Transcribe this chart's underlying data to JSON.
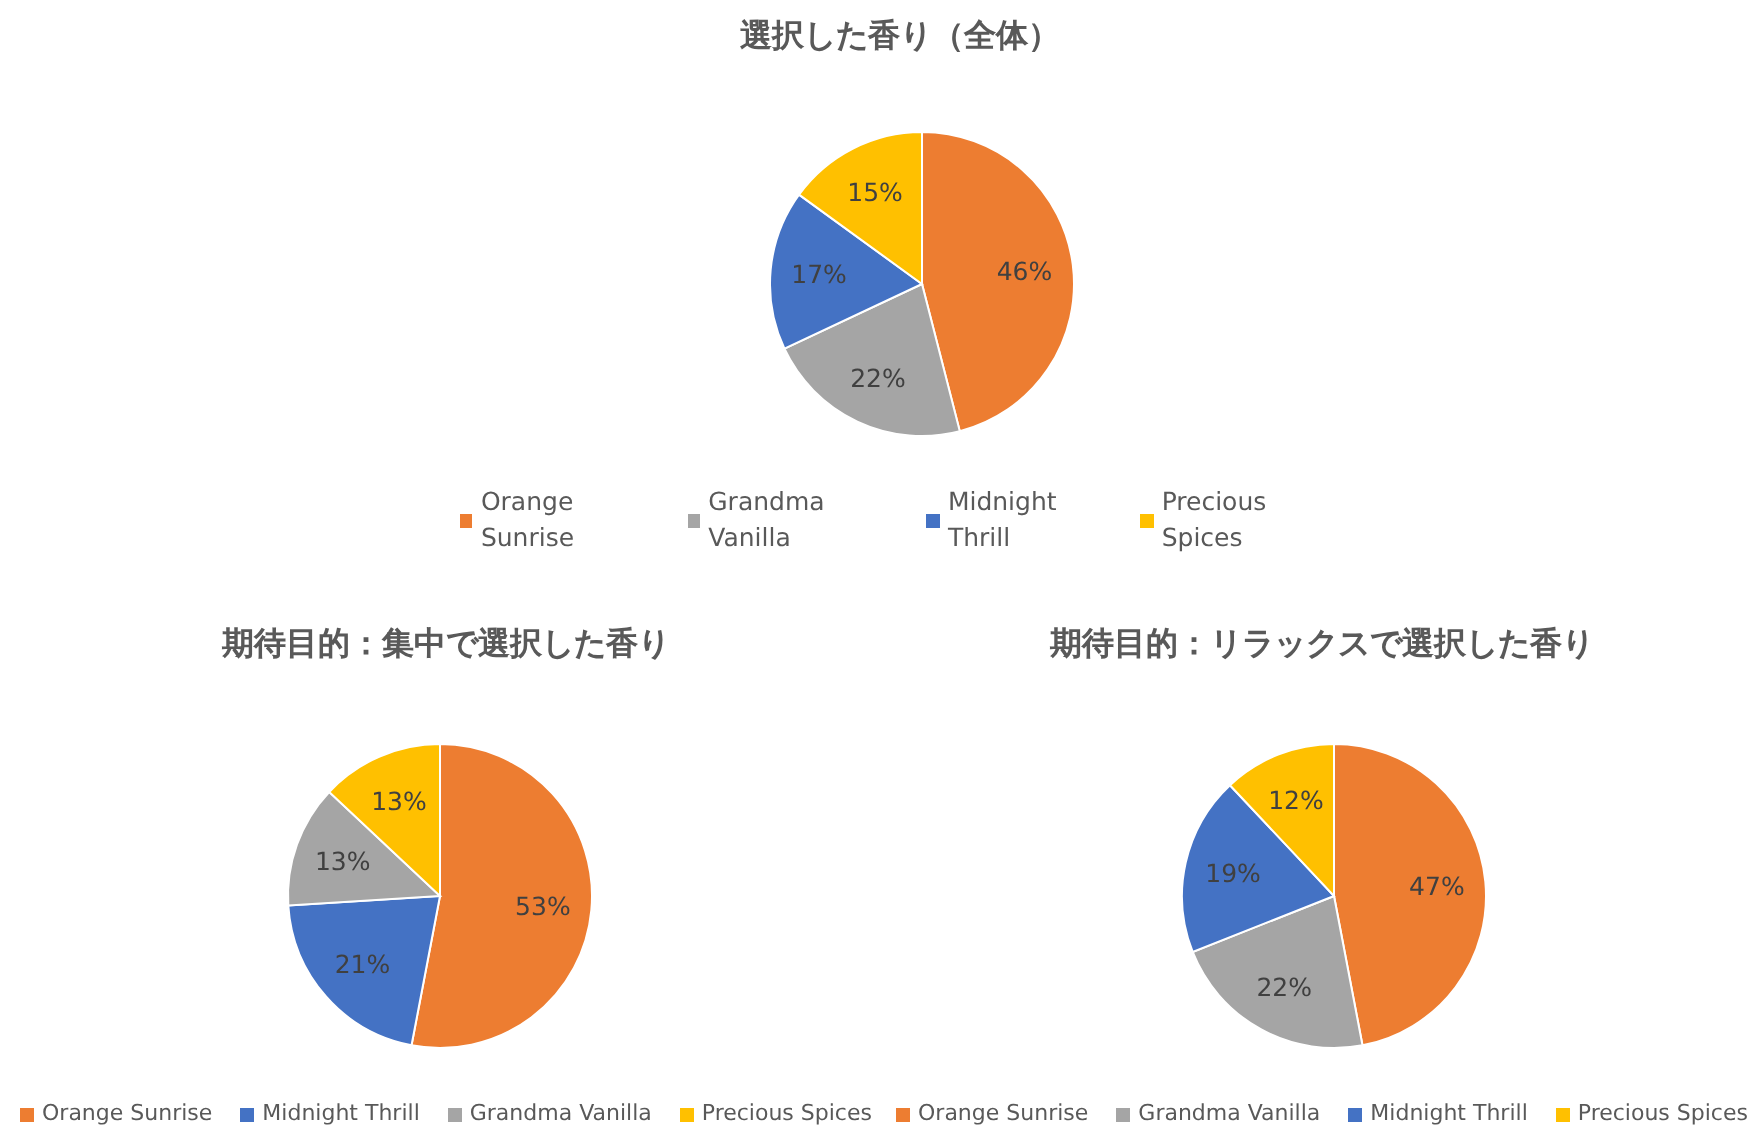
{
  "chart_data": [
    {
      "type": "pie",
      "title": "選択した香り（全体）",
      "categories": [
        "Orange Sunrise",
        "Grandma Vanilla",
        "Midnight Thrill",
        "Precious Spices"
      ],
      "values": [
        46,
        22,
        17,
        15
      ],
      "colors": [
        "#ed7d31",
        "#a5a5a5",
        "#4472c4",
        "#ffc000"
      ],
      "value_labels": [
        "46%",
        "22%",
        "17%",
        "15%"
      ],
      "legend": "bottom"
    },
    {
      "type": "pie",
      "title": "期待目的：集中で選択した香り",
      "categories": [
        "Orange Sunrise",
        "Midnight Thrill",
        "Grandma Vanilla",
        "Precious Spices"
      ],
      "values": [
        53,
        21,
        13,
        13
      ],
      "colors": [
        "#ed7d31",
        "#4472c4",
        "#a5a5a5",
        "#ffc000"
      ],
      "value_labels": [
        "53%",
        "21%",
        "13%",
        "13%"
      ],
      "legend": "bottom"
    },
    {
      "type": "pie",
      "title": "期待目的：リラックスで選択した香り",
      "categories": [
        "Orange Sunrise",
        "Grandma Vanilla",
        "Midnight Thrill",
        "Precious Spices"
      ],
      "values": [
        47,
        22,
        19,
        12
      ],
      "colors": [
        "#ed7d31",
        "#a5a5a5",
        "#4472c4",
        "#ffc000"
      ],
      "value_labels": [
        "47%",
        "22%",
        "19%",
        "12%"
      ],
      "legend": "bottom"
    }
  ]
}
